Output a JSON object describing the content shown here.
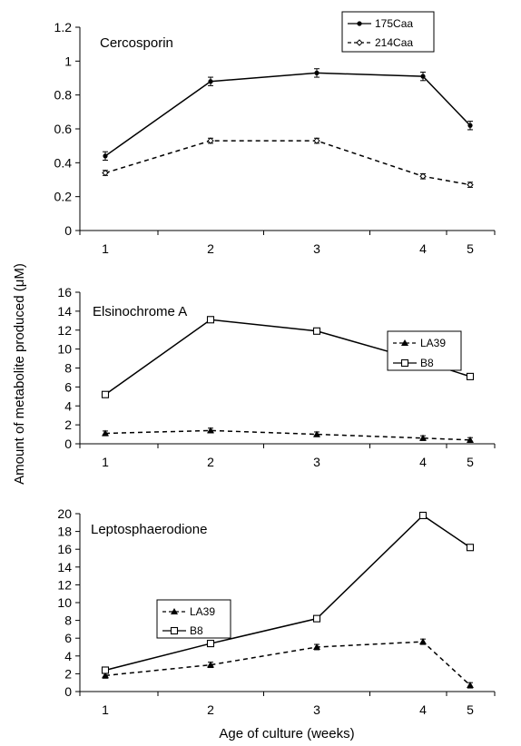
{
  "y_axis_label": "Amount of metabolite produced (μM)",
  "x_axis_label": "Age of culture (weeks)",
  "chart_data": [
    {
      "type": "line",
      "title": "Cercosporin",
      "x": [
        1,
        2,
        3,
        4,
        5
      ],
      "ylim": [
        0,
        1.2
      ],
      "yticks": [
        "0",
        "0.2",
        "0.4",
        "0.6",
        "0.8",
        "1",
        "1.2"
      ],
      "xticks": [
        "1",
        "2",
        "3",
        "4",
        "5"
      ],
      "legend_position": "top-right",
      "series": [
        {
          "name": "175Caa",
          "values": [
            0.44,
            0.88,
            0.93,
            0.91,
            0.62
          ],
          "errors": [
            0.025,
            0.025,
            0.025,
            0.025,
            0.025
          ],
          "style": "solid",
          "marker": "dot"
        },
        {
          "name": "214Caa",
          "values": [
            0.34,
            0.53,
            0.53,
            0.32,
            0.27
          ],
          "errors": [
            0.015,
            0.015,
            0.015,
            0.015,
            0.015
          ],
          "style": "dashed",
          "marker": "diamond"
        }
      ]
    },
    {
      "type": "line",
      "title": "Elsinochrome A",
      "x": [
        1,
        2,
        3,
        4,
        5
      ],
      "ylim": [
        0,
        16
      ],
      "yticks": [
        "0",
        "2",
        "4",
        "6",
        "8",
        "10",
        "12",
        "14",
        "16"
      ],
      "xticks": [
        "1",
        "2",
        "3",
        "4",
        "5"
      ],
      "legend_position": "right",
      "series": [
        {
          "name": "LA39",
          "values": [
            1.1,
            1.4,
            1.0,
            0.6,
            0.4
          ],
          "errors": [
            0.25,
            0.25,
            0.25,
            0.25,
            0.25
          ],
          "style": "dashed",
          "marker": "triangle"
        },
        {
          "name": "B8",
          "values": [
            5.2,
            13.1,
            11.9,
            8.7,
            7.1
          ],
          "errors": [
            0.25,
            0.25,
            0.25,
            0.25,
            0.25
          ],
          "style": "solid",
          "marker": "square"
        }
      ]
    },
    {
      "type": "line",
      "title": "Leptosphaerodione",
      "x": [
        1,
        2,
        3,
        4,
        5
      ],
      "ylim": [
        0,
        20
      ],
      "yticks": [
        "0",
        "2",
        "4",
        "6",
        "8",
        "10",
        "12",
        "14",
        "16",
        "18",
        "20"
      ],
      "xticks": [
        "1",
        "2",
        "3",
        "4",
        "5"
      ],
      "legend_position": "left",
      "series": [
        {
          "name": "LA39",
          "values": [
            1.8,
            3.0,
            5.0,
            5.6,
            0.7
          ],
          "errors": [
            0.3,
            0.3,
            0.3,
            0.3,
            0.3
          ],
          "style": "dashed",
          "marker": "triangle"
        },
        {
          "name": "B8",
          "values": [
            2.4,
            5.4,
            8.2,
            19.8,
            16.2
          ],
          "errors": [
            0.3,
            0.3,
            0.3,
            0.3,
            0.3
          ],
          "style": "solid",
          "marker": "square"
        }
      ]
    }
  ]
}
